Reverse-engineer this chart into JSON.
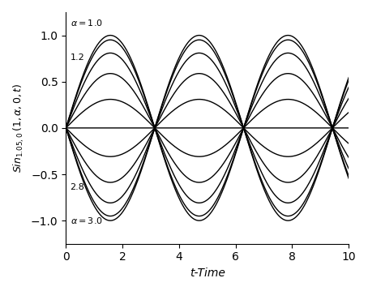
{
  "xlabel": "t-Time",
  "ylabel": "$Sin_{1.05,0}\\,(1,\\alpha,0,t)$",
  "t_start": 0.0,
  "t_end": 10,
  "t_points": 2000,
  "alpha_values": [
    1.0,
    1.2,
    1.4,
    1.6,
    1.8,
    2.0,
    2.2,
    2.4,
    2.6,
    2.8,
    3.0
  ],
  "xlim": [
    0,
    10
  ],
  "ylim": [
    -1.25,
    1.25
  ],
  "xticks": [
    0,
    2,
    4,
    6,
    8,
    10
  ],
  "yticks": [
    -1,
    -0.5,
    0,
    0.5,
    1
  ],
  "line_color": "#000000",
  "background_color": "#ffffff",
  "figsize": [
    4.54,
    3.59
  ],
  "dpi": 100
}
